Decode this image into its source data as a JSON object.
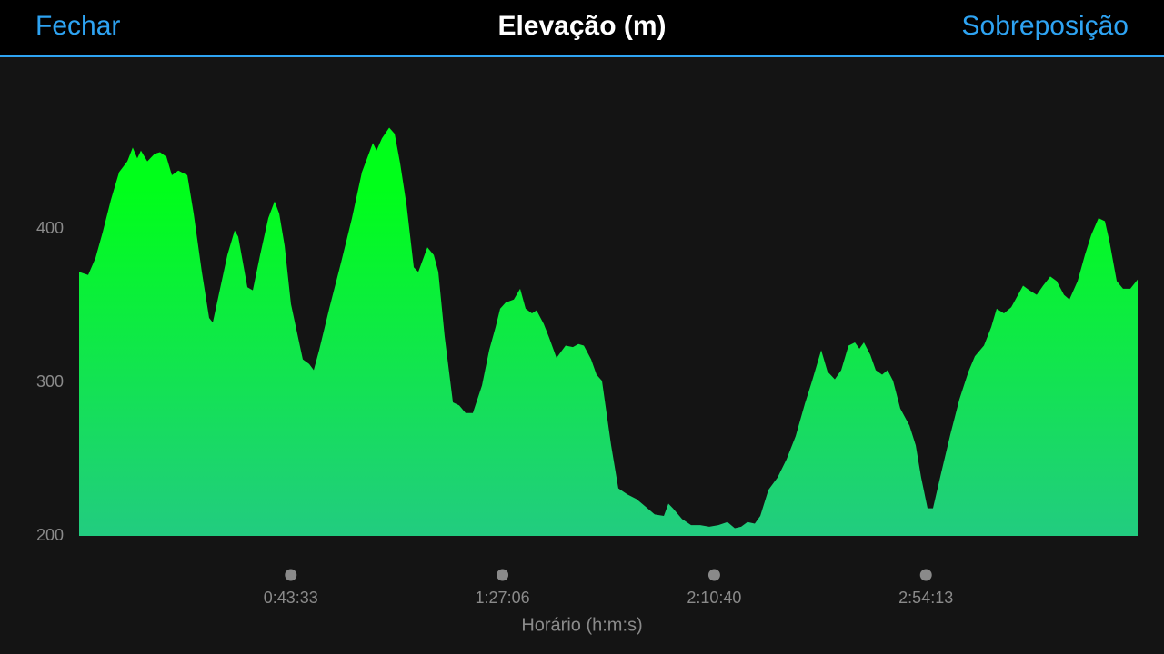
{
  "header": {
    "left": "Fechar",
    "right": "Sobreposição"
  },
  "chart_data": {
    "type": "area",
    "title": "Elevação (m)",
    "x_label": "Horário (h:m:s)",
    "color_top": "#00ff1a",
    "color_bottom": "#22cc80",
    "xlim": [
      0,
      13066
    ],
    "ylim": [
      200,
      500
    ],
    "yticks": [
      200,
      300,
      400
    ],
    "xticks": [
      {
        "value": 2613,
        "label": "0:43:33"
      },
      {
        "value": 5226,
        "label": "1:27:06"
      },
      {
        "value": 7840,
        "label": "2:10:40"
      },
      {
        "value": 10453,
        "label": "2:54:13"
      }
    ],
    "x": [
      0,
      112,
      202,
      292,
      393,
      494,
      595,
      662,
      718,
      763,
      842,
      932,
      999,
      1078,
      1145,
      1224,
      1336,
      1414,
      1515,
      1605,
      1650,
      1740,
      1830,
      1920,
      1964,
      2077,
      2144,
      2234,
      2335,
      2413,
      2470,
      2537,
      2615,
      2761,
      2840,
      2896,
      2963,
      3087,
      3233,
      3368,
      3491,
      3626,
      3671,
      3738,
      3828,
      3895,
      3962,
      4041,
      4131,
      4187,
      4299,
      4378,
      4434,
      4512,
      4614,
      4692,
      4771,
      4860,
      4973,
      5062,
      5141,
      5197,
      5265,
      5366,
      5444,
      5512,
      5590,
      5646,
      5736,
      5803,
      5893,
      6005,
      6095,
      6163,
      6230,
      6320,
      6387,
      6454,
      6567,
      6656,
      6769,
      6881,
      6993,
      7105,
      7218,
      7274,
      7330,
      7442,
      7554,
      7667,
      7779,
      7891,
      8003,
      8093,
      8172,
      8250,
      8340,
      8408,
      8509,
      8621,
      8733,
      8845,
      8958,
      9048,
      9160,
      9238,
      9328,
      9407,
      9497,
      9576,
      9632,
      9687,
      9766,
      9833,
      9912,
      9979,
      10047,
      10136,
      10249,
      10327,
      10394,
      10473,
      10540,
      10641,
      10754,
      10866,
      10978,
      11057,
      11169,
      11259,
      11326,
      11416,
      11506,
      11652,
      11730,
      11820,
      11899,
      11988,
      12067,
      12157,
      12224,
      12325,
      12415,
      12493,
      12583,
      12662,
      12718,
      12808,
      12886,
      12976,
      13066
    ],
    "values": [
      372,
      370,
      381,
      398,
      419,
      437,
      444,
      453,
      446,
      451,
      444,
      449,
      450,
      447,
      435,
      438,
      435,
      410,
      372,
      342,
      339,
      361,
      383,
      399,
      395,
      362,
      360,
      383,
      407,
      418,
      410,
      389,
      351,
      315,
      312,
      308,
      321,
      348,
      378,
      407,
      437,
      456,
      451,
      459,
      466,
      462,
      443,
      416,
      375,
      372,
      388,
      383,
      372,
      330,
      287,
      285,
      280,
      280,
      298,
      321,
      336,
      348,
      352,
      354,
      361,
      348,
      345,
      347,
      338,
      329,
      316,
      324,
      323,
      325,
      324,
      315,
      305,
      301,
      259,
      231,
      227,
      224,
      219,
      214,
      213,
      221,
      218,
      211,
      207,
      207,
      206,
      207,
      209,
      205,
      206,
      209,
      208,
      213,
      230,
      238,
      250,
      265,
      286,
      301,
      321,
      307,
      302,
      308,
      324,
      326,
      322,
      326,
      318,
      308,
      305,
      308,
      301,
      283,
      272,
      259,
      238,
      218,
      218,
      241,
      266,
      289,
      307,
      317,
      324,
      336,
      348,
      345,
      349,
      363,
      360,
      357,
      363,
      369,
      366,
      357,
      354,
      366,
      383,
      396,
      407,
      405,
      392,
      366,
      361,
      361,
      367
    ]
  }
}
